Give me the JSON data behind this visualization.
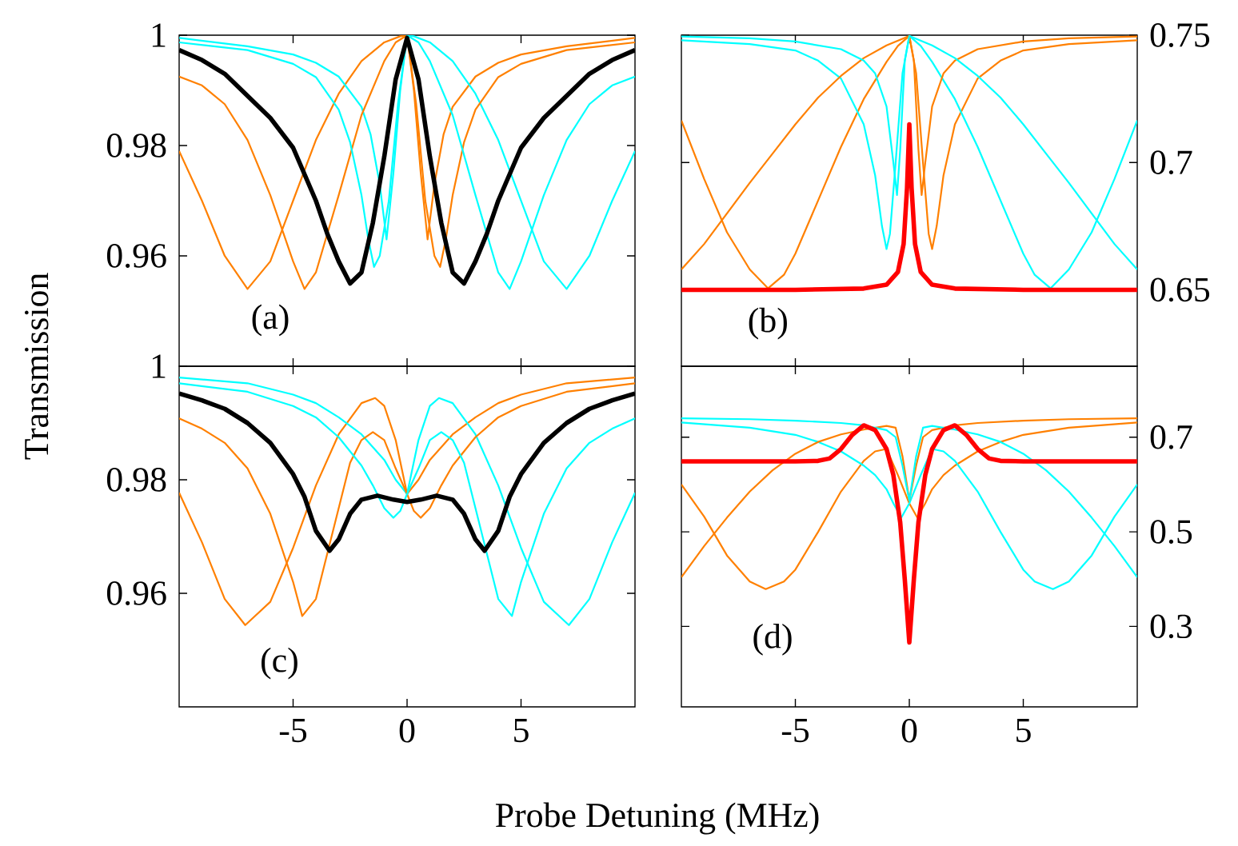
{
  "chart_data": [
    {
      "type": "line",
      "ylabel": "Transmission",
      "xlim": [
        -10,
        10
      ],
      "xticks": [
        -5,
        0,
        5
      ],
      "ylim": [
        0.94,
        1
      ],
      "yticks": [
        0.96,
        0.98,
        1
      ],
      "tick_labels": "y",
      "annotations": [
        "(a)"
      ],
      "series": [
        {
          "color": "#ff8000",
          "x": [
            -10,
            -9,
            -8,
            -7,
            -6,
            -5,
            -4,
            -3,
            -2,
            -1,
            -0.3,
            0,
            0.3,
            0.6,
            0.9,
            1.2,
            1.6,
            2,
            3,
            4,
            5,
            7,
            10
          ],
          "values": [
            0.979,
            0.97,
            0.96,
            0.954,
            0.959,
            0.97,
            0.981,
            0.9894,
            0.9953,
            0.9987,
            0.9998,
            1.0,
            0.99,
            0.975,
            0.963,
            0.973,
            0.982,
            0.987,
            0.9925,
            0.995,
            0.9965,
            0.998,
            0.9995
          ]
        },
        {
          "color": "#00ffff",
          "x": [
            -10,
            -7,
            -5,
            -4,
            -3,
            -2,
            -1.6,
            -1.2,
            -0.9,
            -0.6,
            -0.3,
            0,
            0.3,
            1,
            2,
            3,
            4,
            5,
            6,
            7,
            8,
            9,
            10
          ],
          "values": [
            0.9995,
            0.998,
            0.9965,
            0.995,
            0.9925,
            0.987,
            0.982,
            0.973,
            0.963,
            0.975,
            0.99,
            1.0,
            0.9998,
            0.9987,
            0.9953,
            0.9894,
            0.981,
            0.97,
            0.959,
            0.954,
            0.96,
            0.97,
            0.979
          ]
        },
        {
          "color": "#ff8000",
          "x": [
            -10,
            -9,
            -8,
            -7,
            -6,
            -5,
            -4.5,
            -4,
            -3,
            -2,
            -1,
            -0.5,
            0,
            0.4,
            0.8,
            1.2,
            1.45,
            1.7,
            2,
            2.5,
            3,
            4,
            5,
            7,
            10
          ],
          "values": [
            0.9925,
            0.9909,
            0.9875,
            0.981,
            0.971,
            0.959,
            0.954,
            0.957,
            0.971,
            0.9855,
            0.9953,
            0.9987,
            1.0,
            0.9875,
            0.97,
            0.96,
            0.958,
            0.963,
            0.971,
            0.9806,
            0.9865,
            0.9924,
            0.9948,
            0.9973,
            0.9987
          ]
        },
        {
          "color": "#00ffff",
          "x": [
            -10,
            -7,
            -5,
            -4,
            -3,
            -2.5,
            -2,
            -1.7,
            -1.45,
            -1.2,
            -0.8,
            -0.4,
            0,
            0.5,
            1,
            2,
            3,
            4,
            4.5,
            5,
            6,
            7,
            8,
            9,
            10
          ],
          "values": [
            0.9987,
            0.9973,
            0.9948,
            0.9924,
            0.9865,
            0.9806,
            0.971,
            0.963,
            0.958,
            0.96,
            0.97,
            0.9875,
            1.0,
            0.9987,
            0.9953,
            0.9855,
            0.971,
            0.957,
            0.954,
            0.959,
            0.971,
            0.981,
            0.9875,
            0.9909,
            0.9925
          ]
        },
        {
          "color": "#000000",
          "x": [
            -10,
            -9,
            -8,
            -7,
            -6,
            -5,
            -4,
            -3.5,
            -3,
            -2.5,
            -2,
            -1.5,
            -1,
            -0.5,
            0,
            0.5,
            1,
            1.5,
            2,
            2.5,
            3,
            3.5,
            4,
            5,
            6,
            7,
            8,
            9,
            10
          ],
          "values": [
            0.9973,
            0.9955,
            0.993,
            0.989,
            0.985,
            0.9796,
            0.97,
            0.964,
            0.959,
            0.955,
            0.957,
            0.966,
            0.978,
            0.992,
            0.9995,
            0.992,
            0.978,
            0.966,
            0.957,
            0.955,
            0.959,
            0.964,
            0.97,
            0.9796,
            0.985,
            0.989,
            0.993,
            0.9955,
            0.9973
          ]
        }
      ]
    },
    {
      "type": "line",
      "xlim": [
        -10,
        10
      ],
      "xticks": [
        -5,
        0,
        5
      ],
      "ylim": [
        0.62,
        0.75
      ],
      "yticks": [
        0.65,
        0.7,
        0.75
      ],
      "tick_labels": "y",
      "annotations": [
        "(b)"
      ],
      "series": [
        {
          "color": "#ff8000",
          "x": [
            -10,
            -9,
            -8,
            -7,
            -6.2,
            -5.5,
            -5,
            -4,
            -3,
            -2,
            -1,
            -0.5,
            0,
            0.3,
            0.6,
            0.85,
            1,
            1.2,
            1.5,
            2,
            3,
            4,
            5,
            7,
            10
          ],
          "values": [
            0.7165,
            0.6935,
            0.6726,
            0.658,
            0.6506,
            0.6559,
            0.6642,
            0.6851,
            0.7061,
            0.7249,
            0.7395,
            0.7458,
            0.7497,
            0.735,
            0.7,
            0.672,
            0.666,
            0.675,
            0.695,
            0.715,
            0.733,
            0.74,
            0.744,
            0.7465,
            0.748
          ]
        },
        {
          "color": "#00ffff",
          "x": [
            -10,
            -7,
            -5,
            -4,
            -3,
            -2,
            -1.5,
            -1.2,
            -1,
            -0.85,
            -0.6,
            -0.3,
            0,
            0.5,
            1,
            2,
            3,
            4,
            5,
            5.5,
            6.2,
            7,
            8,
            9,
            10
          ],
          "values": [
            0.748,
            0.7465,
            0.744,
            0.74,
            0.733,
            0.715,
            0.695,
            0.675,
            0.666,
            0.672,
            0.7,
            0.735,
            0.7497,
            0.7458,
            0.7395,
            0.7249,
            0.7061,
            0.6851,
            0.6642,
            0.6559,
            0.6506,
            0.658,
            0.6726,
            0.6935,
            0.7165
          ]
        },
        {
          "color": "#ff8000",
          "x": [
            -10,
            -9,
            -8,
            -7,
            -6,
            -5,
            -4,
            -3,
            -2,
            -1,
            0,
            0.2,
            0.4,
            0.54,
            0.7,
            1,
            1.5,
            2,
            3,
            5,
            7,
            10
          ],
          "values": [
            0.658,
            0.668,
            0.68,
            0.692,
            0.7035,
            0.715,
            0.7255,
            0.734,
            0.741,
            0.746,
            0.7497,
            0.74,
            0.705,
            0.6872,
            0.7,
            0.722,
            0.735,
            0.74,
            0.7445,
            0.7475,
            0.7488,
            0.7495
          ]
        },
        {
          "color": "#00ffff",
          "x": [
            -10,
            -7,
            -5,
            -3,
            -2,
            -1.5,
            -1,
            -0.7,
            -0.54,
            -0.4,
            -0.2,
            0,
            1,
            2,
            3,
            4,
            5,
            6,
            7,
            8,
            9,
            10
          ],
          "values": [
            0.7495,
            0.7488,
            0.7475,
            0.7445,
            0.74,
            0.735,
            0.722,
            0.7,
            0.6872,
            0.705,
            0.74,
            0.7497,
            0.746,
            0.741,
            0.734,
            0.7255,
            0.715,
            0.7035,
            0.692,
            0.68,
            0.668,
            0.658
          ]
        },
        {
          "color": "#ff0000",
          "x": [
            -10,
            -5,
            -2,
            -1,
            -0.5,
            -0.25,
            -0.1,
            0,
            0.1,
            0.25,
            0.5,
            1,
            2,
            5,
            10
          ],
          "values": [
            0.65,
            0.65,
            0.6505,
            0.652,
            0.657,
            0.668,
            0.69,
            0.715,
            0.69,
            0.668,
            0.657,
            0.652,
            0.6505,
            0.65,
            0.65
          ]
        }
      ]
    },
    {
      "type": "line",
      "xlabel": "Probe Detuning (MHz)",
      "xlim": [
        -10,
        10
      ],
      "xticks": [
        -5,
        0,
        5
      ],
      "ylim": [
        0.94,
        1
      ],
      "yticks": [
        0.96,
        0.98,
        1
      ],
      "annotations": [
        "(c)"
      ],
      "series": [
        {
          "color": "#ff8000",
          "x": [
            -10,
            -9,
            -8,
            -7.1,
            -6,
            -5,
            -4,
            -3,
            -2,
            -1.4,
            -1,
            -0.5,
            0,
            0.5,
            1,
            2,
            3,
            4,
            5,
            7,
            10
          ],
          "values": [
            0.9777,
            0.969,
            0.959,
            0.9544,
            0.9585,
            0.968,
            0.979,
            0.988,
            0.9935,
            0.9944,
            0.993,
            0.987,
            0.9775,
            0.98,
            0.9835,
            0.988,
            0.991,
            0.9935,
            0.995,
            0.997,
            0.998
          ]
        },
        {
          "color": "#00ffff",
          "x": [
            -10,
            -7,
            -5,
            -4,
            -3,
            -2,
            -1,
            -0.5,
            0,
            0.5,
            1,
            1.4,
            2,
            3,
            4,
            5,
            6,
            7.1,
            8,
            9,
            10
          ],
          "values": [
            0.998,
            0.997,
            0.995,
            0.9935,
            0.991,
            0.988,
            0.9835,
            0.98,
            0.9775,
            0.987,
            0.993,
            0.9944,
            0.9935,
            0.988,
            0.979,
            0.968,
            0.9585,
            0.9544,
            0.959,
            0.969,
            0.9777
          ]
        },
        {
          "color": "#ff8000",
          "x": [
            -10,
            -9,
            -8,
            -7,
            -6,
            -5,
            -4.6,
            -4,
            -3.5,
            -3,
            -2.5,
            -2,
            -1.5,
            -1,
            -0.5,
            0,
            0.3,
            0.6,
            1,
            1.5,
            2,
            3,
            4,
            5,
            7,
            10
          ],
          "values": [
            0.9908,
            0.989,
            0.9865,
            0.982,
            0.974,
            0.962,
            0.956,
            0.959,
            0.967,
            0.975,
            0.983,
            0.987,
            0.9884,
            0.987,
            0.982,
            0.9775,
            0.9745,
            0.9733,
            0.975,
            0.979,
            0.9825,
            0.9875,
            0.991,
            0.993,
            0.9955,
            0.997
          ]
        },
        {
          "color": "#00ffff",
          "x": [
            -10,
            -7,
            -5,
            -4,
            -3,
            -2,
            -1.5,
            -1,
            -0.6,
            -0.3,
            0,
            0.5,
            1,
            1.5,
            2,
            2.5,
            3,
            3.5,
            4,
            4.6,
            5,
            6,
            7,
            8,
            9,
            10
          ],
          "values": [
            0.997,
            0.9955,
            0.993,
            0.991,
            0.9875,
            0.9825,
            0.979,
            0.975,
            0.9733,
            0.9745,
            0.9775,
            0.982,
            0.987,
            0.9884,
            0.987,
            0.983,
            0.975,
            0.967,
            0.959,
            0.956,
            0.962,
            0.974,
            0.982,
            0.9865,
            0.989,
            0.9908
          ]
        },
        {
          "color": "#000000",
          "x": [
            -10,
            -9,
            -8,
            -7,
            -6,
            -5,
            -4.5,
            -4,
            -3.4,
            -3,
            -2.5,
            -2,
            -1.3,
            -0.6,
            0,
            0.6,
            1.3,
            2,
            2.5,
            3,
            3.4,
            4,
            4.5,
            5,
            6,
            7,
            8,
            9,
            10
          ],
          "values": [
            0.9952,
            0.994,
            0.9925,
            0.99,
            0.9865,
            0.981,
            0.977,
            0.971,
            0.9675,
            0.9695,
            0.974,
            0.9765,
            0.9772,
            0.9765,
            0.9761,
            0.9765,
            0.9772,
            0.9765,
            0.974,
            0.9695,
            0.9675,
            0.971,
            0.977,
            0.981,
            0.9865,
            0.99,
            0.9925,
            0.994,
            0.9952
          ]
        }
      ]
    },
    {
      "type": "line",
      "xlim": [
        -10,
        10
      ],
      "xticks": [
        -5,
        0,
        5
      ],
      "ylim": [
        0.13,
        0.85
      ],
      "yticks": [
        0.3,
        0.5,
        0.7
      ],
      "annotations": [
        "(d)"
      ],
      "series": [
        {
          "color": "#ff8000",
          "x": [
            -10,
            -9,
            -8,
            -7,
            -6.3,
            -5.5,
            -5,
            -4,
            -3,
            -2,
            -1.5,
            -1,
            -0.5,
            0,
            0.35,
            0.7,
            1,
            1.5,
            2,
            3,
            4,
            5,
            7,
            10
          ],
          "values": [
            0.6,
            0.532,
            0.45,
            0.395,
            0.379,
            0.395,
            0.42,
            0.5,
            0.585,
            0.65,
            0.67,
            0.675,
            0.62,
            0.56,
            0.53,
            0.56,
            0.59,
            0.62,
            0.64,
            0.67,
            0.69,
            0.705,
            0.72,
            0.731
          ]
        },
        {
          "color": "#00ffff",
          "x": [
            -10,
            -7,
            -5,
            -4,
            -3,
            -2,
            -1.5,
            -1,
            -0.7,
            -0.35,
            0,
            0.5,
            1,
            1.5,
            2,
            3,
            4,
            5,
            5.5,
            6.3,
            7,
            8,
            9,
            10
          ],
          "values": [
            0.731,
            0.72,
            0.705,
            0.69,
            0.67,
            0.64,
            0.62,
            0.59,
            0.56,
            0.53,
            0.56,
            0.62,
            0.675,
            0.67,
            0.65,
            0.585,
            0.5,
            0.42,
            0.395,
            0.379,
            0.395,
            0.45,
            0.532,
            0.6
          ]
        },
        {
          "color": "#ff8000",
          "x": [
            -10,
            -9,
            -8,
            -7,
            -6,
            -5,
            -4,
            -3,
            -2,
            -1,
            -0.6,
            -0.3,
            0,
            0.3,
            0.6,
            1,
            2,
            3,
            5,
            7,
            10
          ],
          "values": [
            0.404,
            0.47,
            0.53,
            0.585,
            0.63,
            0.665,
            0.69,
            0.706,
            0.716,
            0.724,
            0.72,
            0.66,
            0.566,
            0.64,
            0.7,
            0.715,
            0.725,
            0.73,
            0.735,
            0.738,
            0.74
          ]
        },
        {
          "color": "#00ffff",
          "x": [
            -10,
            -7,
            -5,
            -3,
            -2,
            -1,
            -0.6,
            -0.3,
            0,
            0.3,
            0.6,
            1,
            2,
            3,
            4,
            5,
            6,
            7,
            8,
            9,
            10
          ],
          "values": [
            0.74,
            0.738,
            0.735,
            0.73,
            0.725,
            0.715,
            0.7,
            0.64,
            0.566,
            0.66,
            0.72,
            0.724,
            0.716,
            0.706,
            0.69,
            0.665,
            0.63,
            0.585,
            0.53,
            0.47,
            0.404
          ]
        },
        {
          "color": "#ff0000",
          "x": [
            -10,
            -5,
            -4,
            -3.5,
            -3,
            -2.5,
            -2,
            -1.5,
            -1,
            -0.7,
            -0.4,
            -0.2,
            0,
            0.2,
            0.4,
            0.7,
            1,
            1.5,
            2,
            2.5,
            3,
            3.5,
            4,
            5,
            10
          ],
          "values": [
            0.649,
            0.649,
            0.65,
            0.655,
            0.675,
            0.705,
            0.725,
            0.715,
            0.675,
            0.62,
            0.52,
            0.4,
            0.266,
            0.4,
            0.52,
            0.62,
            0.675,
            0.715,
            0.725,
            0.705,
            0.675,
            0.655,
            0.65,
            0.649,
            0.649
          ]
        }
      ]
    }
  ]
}
